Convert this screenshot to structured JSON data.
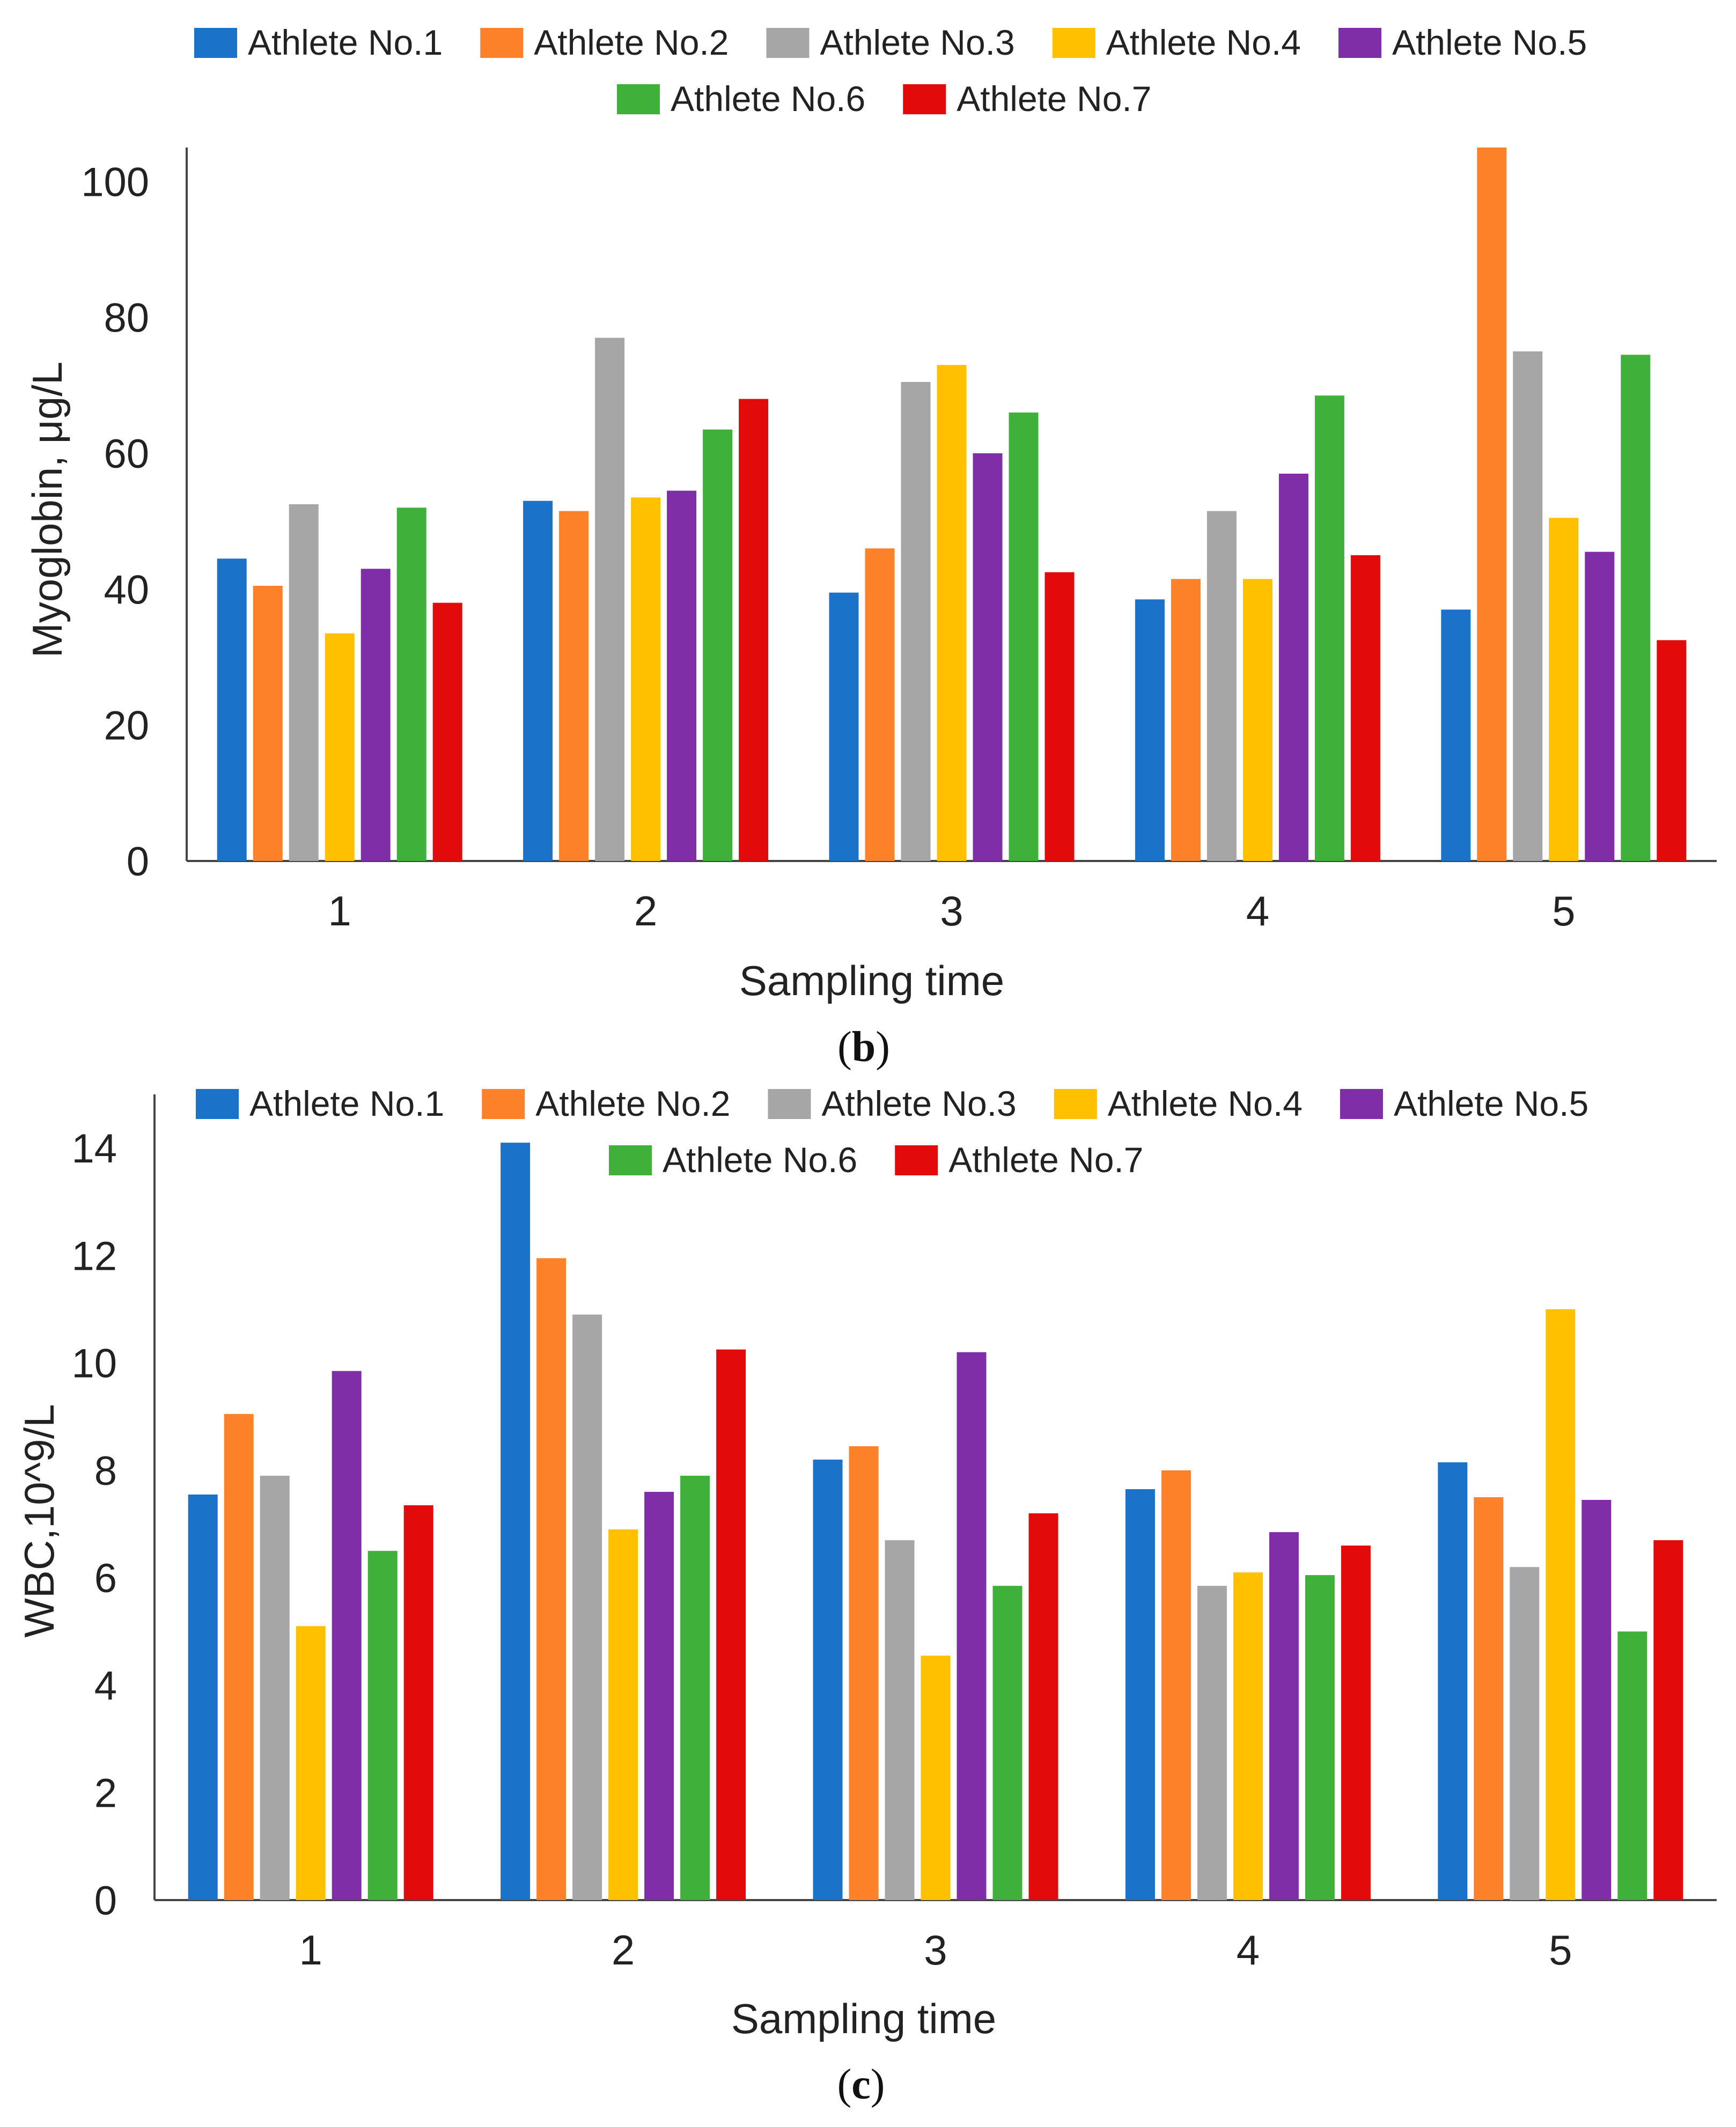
{
  "series_colors": [
    "#1a72c9",
    "#fd8128",
    "#a6a6a6",
    "#ffc000",
    "#7f2ea8",
    "#3fb03a",
    "#e20a0a"
  ],
  "chart_data": [
    {
      "type": "bar",
      "panel_label": "b",
      "title": "",
      "xlabel": "Sampling time",
      "ylabel": "Myoglobin, μg/L",
      "ylim": [
        0,
        105
      ],
      "yticks": [
        0,
        20,
        40,
        60,
        80,
        100
      ],
      "categories": [
        "1",
        "2",
        "3",
        "4",
        "5"
      ],
      "legend_position": "top",
      "series": [
        {
          "name": "Athlete No.1",
          "values": [
            44.5,
            53,
            39.5,
            38.5,
            37
          ]
        },
        {
          "name": "Athlete No.2",
          "values": [
            40.5,
            51.5,
            46,
            41.5,
            105
          ]
        },
        {
          "name": "Athlete No.3",
          "values": [
            52.5,
            77,
            70.5,
            51.5,
            75
          ]
        },
        {
          "name": "Athlete No.4",
          "values": [
            33.5,
            53.5,
            73,
            41.5,
            50.5
          ]
        },
        {
          "name": "Athlete No.5",
          "values": [
            43,
            54.5,
            60,
            57,
            45.5
          ]
        },
        {
          "name": "Athlete No.6",
          "values": [
            52,
            63.5,
            66,
            68.5,
            74.5
          ]
        },
        {
          "name": "Athlete No.7",
          "values": [
            38,
            68,
            42.5,
            45,
            32.5
          ]
        }
      ]
    },
    {
      "type": "bar",
      "panel_label": "c",
      "title": "",
      "xlabel": "Sampling time",
      "ylabel": "WBC,10^9/L",
      "ylim": [
        0,
        15
      ],
      "yticks": [
        0,
        2,
        4,
        6,
        8,
        10,
        12,
        14
      ],
      "categories": [
        "1",
        "2",
        "3",
        "4",
        "5"
      ],
      "legend_position": "top",
      "series": [
        {
          "name": "Athlete No.1",
          "values": [
            7.55,
            14.1,
            8.2,
            7.65,
            8.15
          ]
        },
        {
          "name": "Athlete No.2",
          "values": [
            9.05,
            11.95,
            8.45,
            8.0,
            7.5
          ]
        },
        {
          "name": "Athlete No.3",
          "values": [
            7.9,
            10.9,
            6.7,
            5.85,
            6.2
          ]
        },
        {
          "name": "Athlete No.4",
          "values": [
            5.1,
            6.9,
            4.55,
            6.1,
            11.0
          ]
        },
        {
          "name": "Athlete No.5",
          "values": [
            9.85,
            7.6,
            10.2,
            6.85,
            7.45
          ]
        },
        {
          "name": "Athlete No.6",
          "values": [
            6.5,
            7.9,
            5.85,
            6.05,
            5.0
          ]
        },
        {
          "name": "Athlete No.7",
          "values": [
            7.35,
            10.25,
            7.2,
            6.6,
            6.7
          ]
        }
      ]
    }
  ]
}
